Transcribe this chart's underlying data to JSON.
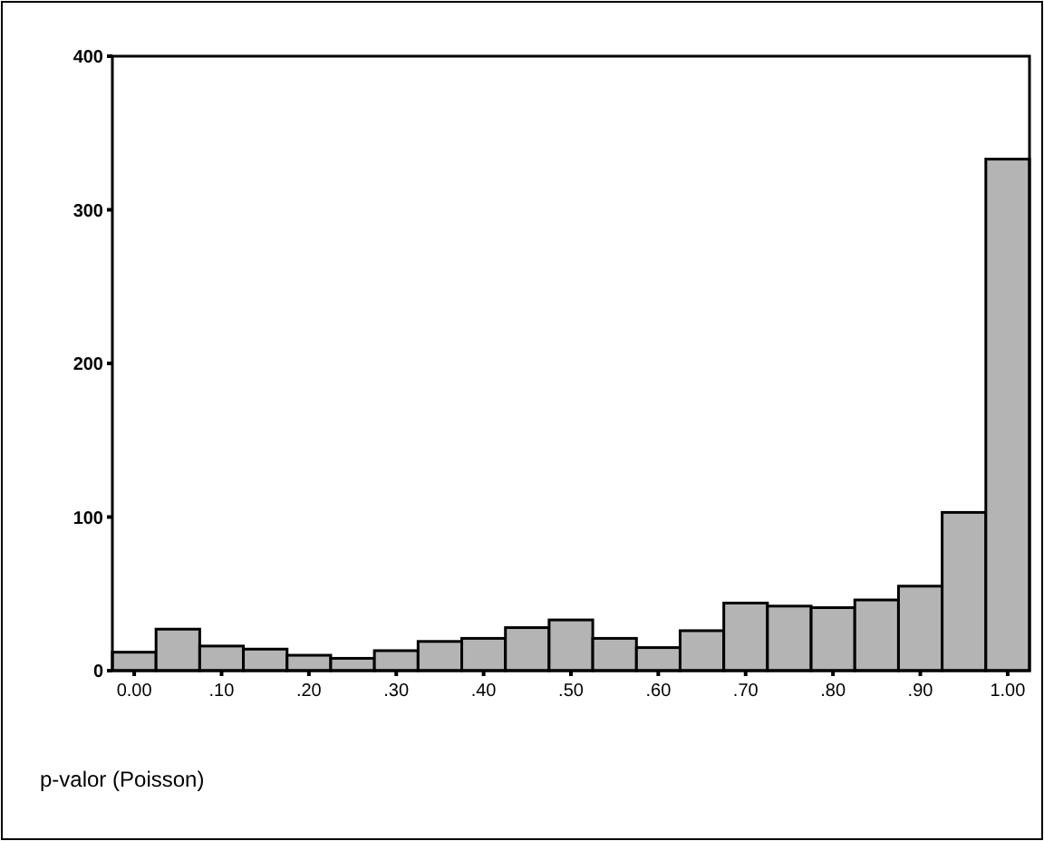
{
  "chart_data": {
    "type": "histogram",
    "xlabel": "p-valor (Poisson)",
    "bins": [
      -0.025,
      0.025,
      0.075,
      0.125,
      0.175,
      0.225,
      0.275,
      0.325,
      0.375,
      0.425,
      0.475,
      0.525,
      0.575,
      0.625,
      0.675,
      0.725,
      0.775,
      0.825,
      0.875,
      0.925,
      0.975,
      1.025
    ],
    "values": [
      12,
      27,
      16,
      14,
      10,
      8,
      13,
      19,
      21,
      28,
      33,
      21,
      15,
      26,
      44,
      42,
      41,
      46,
      55,
      103,
      333
    ],
    "color": "#b4b4b4",
    "xlim": [
      -0.025,
      1.025
    ],
    "xticks": [
      {
        "value": 0,
        "label": "0.00"
      },
      {
        "value": 0.1,
        "label": ".10"
      },
      {
        "value": 0.2,
        "label": ".20"
      },
      {
        "value": 0.3,
        "label": ".30"
      },
      {
        "value": 0.4,
        "label": ".40"
      },
      {
        "value": 0.5,
        "label": ".50"
      },
      {
        "value": 0.6,
        "label": ".60"
      },
      {
        "value": 0.7,
        "label": ".70"
      },
      {
        "value": 0.8,
        "label": ".80"
      },
      {
        "value": 0.9,
        "label": ".90"
      },
      {
        "value": 1,
        "label": "1.00"
      }
    ],
    "ylim": [
      0,
      400
    ],
    "yticks": [
      0,
      100,
      200,
      300,
      400
    ],
    "grid": false
  }
}
